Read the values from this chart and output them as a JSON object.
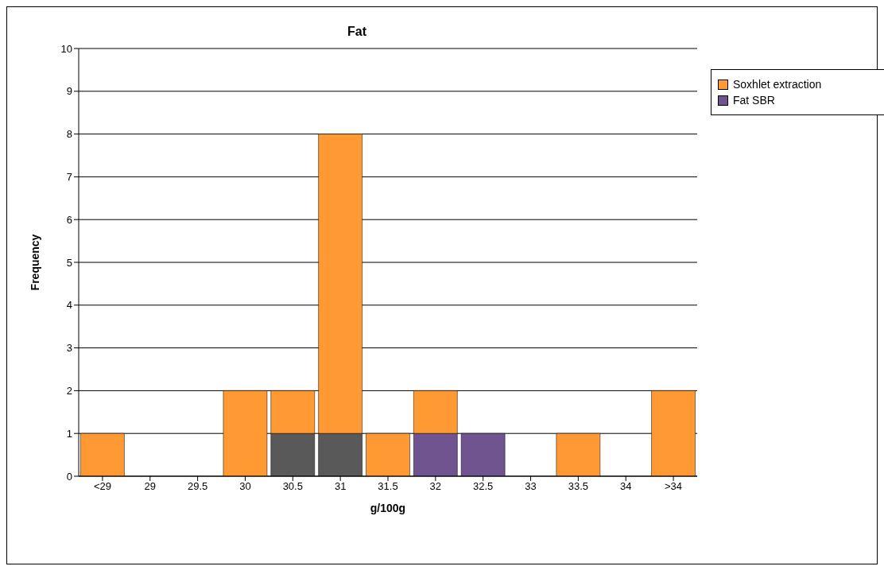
{
  "chart_data": {
    "type": "bar",
    "title": "Fat",
    "xlabel": "g/100g",
    "ylabel": "Frequency",
    "categories": [
      "<29",
      "29",
      "29.5",
      "30",
      "30.5",
      "31",
      "31.5",
      "32",
      "32.5",
      "33",
      "33.5",
      "34",
      ">34"
    ],
    "series": [
      {
        "color": "#595959",
        "values": [
          0,
          0,
          0,
          0,
          1,
          1,
          0,
          0,
          0,
          0,
          0,
          0,
          0
        ]
      },
      {
        "name": "Fat SBR",
        "color": "#6f5490",
        "values": [
          0,
          0,
          0,
          0,
          0,
          0,
          0,
          1,
          1,
          0,
          0,
          0,
          0
        ]
      },
      {
        "name": "Soxhlet extraction",
        "color": "#ff9933",
        "values": [
          1,
          0,
          0,
          2,
          1,
          7,
          1,
          1,
          0,
          0,
          1,
          0,
          2
        ]
      }
    ],
    "stacked": true,
    "ylim": [
      0,
      10
    ],
    "yticks": [
      0,
      1,
      2,
      3,
      4,
      5,
      6,
      7,
      8,
      9,
      10
    ],
    "grid": "y",
    "legend": "top right"
  }
}
